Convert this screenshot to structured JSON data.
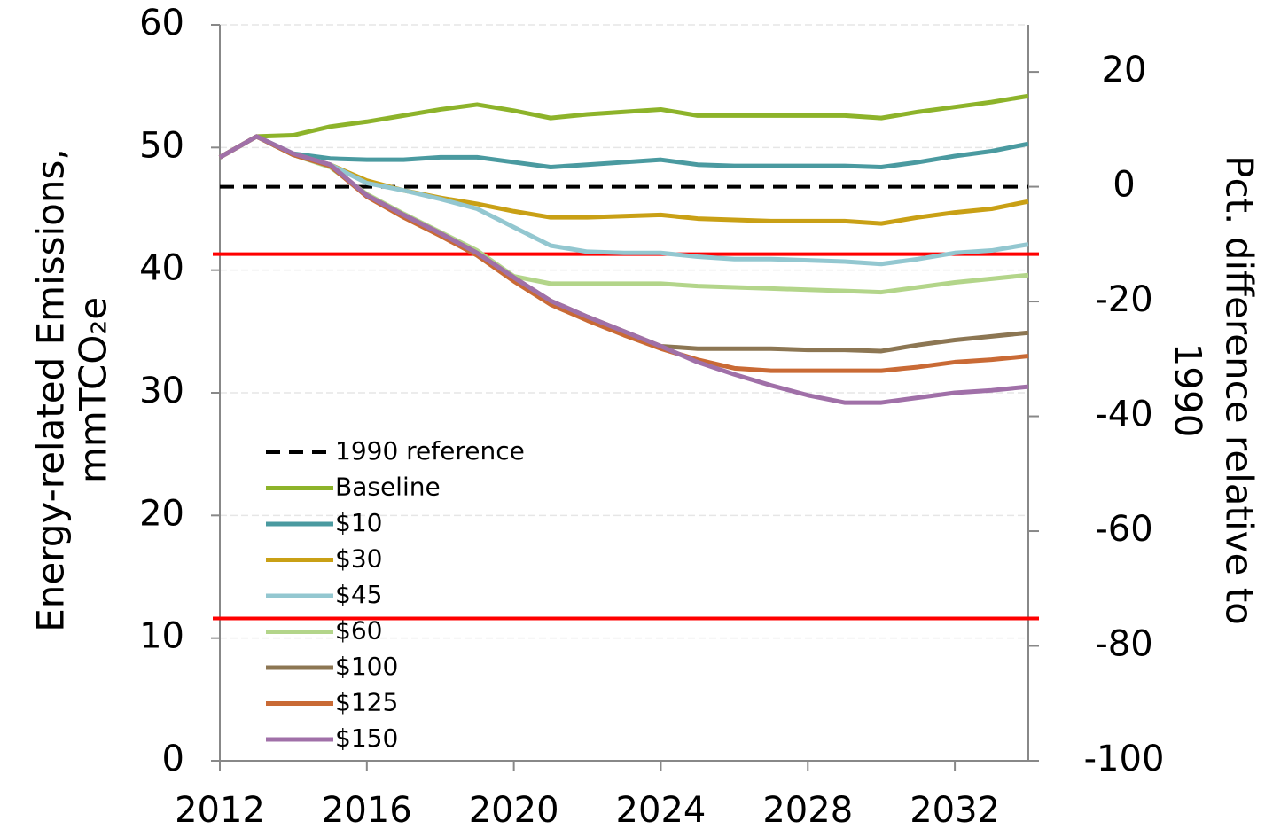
{
  "chart_data": {
    "type": "line",
    "y_label": [
      "Energy-related Emissions,",
      "mmTCO₂e"
    ],
    "y2_label": [
      "Pct. difference relative to",
      "1990"
    ],
    "x": [
      2012,
      2013,
      2014,
      2015,
      2016,
      2017,
      2018,
      2019,
      2020,
      2021,
      2022,
      2023,
      2024,
      2025,
      2026,
      2027,
      2028,
      2029,
      2030,
      2031,
      2032,
      2033,
      2034
    ],
    "xlim": [
      2012,
      2034
    ],
    "xticks": [
      2012,
      2016,
      2020,
      2024,
      2028,
      2032
    ],
    "ylim": [
      0,
      60
    ],
    "yticks": [
      0,
      10,
      20,
      30,
      40,
      50,
      60
    ],
    "y2lim": [
      -100,
      28.2
    ],
    "y2ticks": [
      -100,
      -80,
      -60,
      -40,
      -20,
      0,
      20
    ],
    "grid": true,
    "reference": {
      "name": "1990 reference",
      "value": 46.8,
      "color": "#000000"
    },
    "hlines": [
      {
        "value": 41.3,
        "color": "#ff0000"
      },
      {
        "value": 11.6,
        "color": "#ff0000"
      }
    ],
    "series": [
      {
        "name": "Baseline",
        "color": "#8db32a",
        "values": [
          49.2,
          50.9,
          51.0,
          51.7,
          52.1,
          52.6,
          53.1,
          53.5,
          53.0,
          52.4,
          52.7,
          52.9,
          53.1,
          52.6,
          52.6,
          52.6,
          52.6,
          52.6,
          52.4,
          52.9,
          53.3,
          53.7,
          54.2
        ]
      },
      {
        "name": "$10",
        "color": "#4a9aa0",
        "values": [
          49.2,
          50.9,
          49.5,
          49.1,
          49.0,
          49.0,
          49.2,
          49.2,
          48.8,
          48.4,
          48.6,
          48.8,
          49.0,
          48.6,
          48.5,
          48.5,
          48.5,
          48.5,
          48.4,
          48.8,
          49.3,
          49.7,
          50.3
        ]
      },
      {
        "name": "$30",
        "color": "#c9a015",
        "values": [
          49.2,
          50.9,
          49.4,
          48.6,
          47.3,
          46.5,
          45.9,
          45.4,
          44.8,
          44.3,
          44.3,
          44.4,
          44.5,
          44.2,
          44.1,
          44.0,
          44.0,
          44.0,
          43.8,
          44.3,
          44.7,
          45.0,
          45.6
        ]
      },
      {
        "name": "$45",
        "color": "#93c7d0",
        "values": [
          49.2,
          50.9,
          49.4,
          48.6,
          47.1,
          46.5,
          45.8,
          45.0,
          43.5,
          42.0,
          41.5,
          41.4,
          41.4,
          41.1,
          40.9,
          40.9,
          40.8,
          40.7,
          40.5,
          40.9,
          41.4,
          41.6,
          42.1
        ]
      },
      {
        "name": "$60",
        "color": "#b3d58a",
        "values": [
          49.2,
          50.9,
          49.4,
          48.4,
          46.2,
          44.6,
          43.1,
          41.6,
          39.5,
          38.9,
          38.9,
          38.9,
          38.9,
          38.7,
          38.6,
          38.5,
          38.4,
          38.3,
          38.2,
          38.6,
          39.0,
          39.3,
          39.6
        ]
      },
      {
        "name": "$100",
        "color": "#8c7653",
        "values": [
          49.2,
          50.9,
          49.4,
          48.5,
          46.1,
          44.5,
          43.0,
          41.4,
          39.4,
          37.5,
          36.2,
          35.0,
          33.8,
          33.6,
          33.6,
          33.6,
          33.5,
          33.5,
          33.4,
          33.9,
          34.3,
          34.6,
          34.9
        ]
      },
      {
        "name": "$125",
        "color": "#c96a35",
        "values": [
          49.2,
          50.9,
          49.4,
          48.5,
          46.0,
          44.3,
          42.8,
          41.2,
          39.1,
          37.2,
          35.9,
          34.7,
          33.6,
          32.7,
          32.0,
          31.8,
          31.8,
          31.8,
          31.8,
          32.1,
          32.5,
          32.7,
          33.0
        ]
      },
      {
        "name": "$150",
        "color": "#a070a8",
        "values": [
          49.2,
          50.9,
          49.5,
          48.6,
          46.1,
          44.5,
          43.0,
          41.4,
          39.4,
          37.5,
          36.2,
          35.0,
          33.8,
          32.5,
          31.5,
          30.6,
          29.8,
          29.2,
          29.2,
          29.6,
          30.0,
          30.2,
          30.5
        ]
      }
    ]
  }
}
